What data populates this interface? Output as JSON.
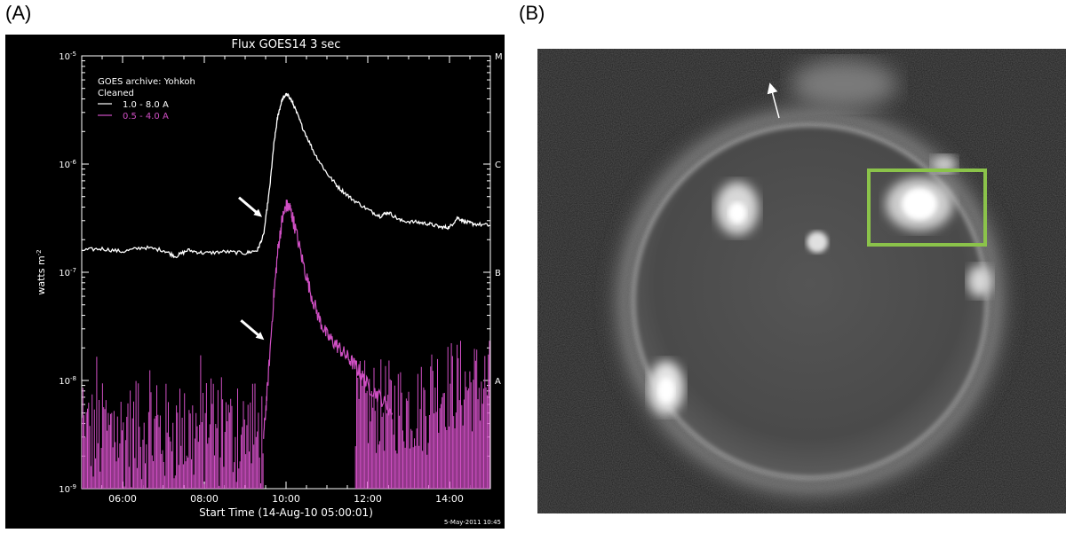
{
  "panel_labels": {
    "a": "(A)",
    "b": "(B)"
  },
  "chart_data": {
    "type": "line",
    "title": "Flux  GOES14 3 sec",
    "xlabel": "Start Time (14-Aug-10 05:00:01)",
    "ylabel": "watts m",
    "ylabel_sup": "-2",
    "yscale": "log",
    "xlim": [
      5.0,
      15.0
    ],
    "ylim": [
      1e-09,
      1e-05
    ],
    "x_ticks": [
      "06:00",
      "08:00",
      "10:00",
      "12:00",
      "14:00"
    ],
    "x_tick_values": [
      6,
      8,
      10,
      12,
      14
    ],
    "y_ticks": [
      {
        "value": 1e-05,
        "base": "10",
        "exp": "-5"
      },
      {
        "value": 1e-06,
        "base": "10",
        "exp": "-6"
      },
      {
        "value": 1e-07,
        "base": "10",
        "exp": "-7"
      },
      {
        "value": 1e-08,
        "base": "10",
        "exp": "-8"
      },
      {
        "value": 1e-09,
        "base": "10",
        "exp": "-9"
      }
    ],
    "right_axis_classes": [
      {
        "label": "M",
        "value": 1e-05
      },
      {
        "label": "C",
        "value": 1e-06
      },
      {
        "label": "B",
        "value": 1e-07
      },
      {
        "label": "A",
        "value": 1e-08
      }
    ],
    "legend": {
      "position": "top-left",
      "header": [
        "GOES archive: Yohkoh",
        "Cleaned"
      ],
      "entries": [
        {
          "label": "1.0 - 8.0 A",
          "color": "#ffffff"
        },
        {
          "label": "0.5 - 4.0 A",
          "color": "#d04fc4"
        }
      ]
    },
    "series": [
      {
        "color": "#ffffff",
        "x": [
          5.0,
          5.5,
          6.0,
          6.5,
          7.0,
          7.3,
          7.6,
          8.0,
          8.5,
          9.0,
          9.3,
          9.45,
          9.6,
          9.7,
          9.8,
          9.9,
          10.0,
          10.1,
          10.2,
          10.4,
          10.7,
          11.0,
          11.3,
          11.6,
          12.0,
          12.3,
          12.5,
          12.8,
          13.2,
          13.5,
          13.8,
          14.0,
          14.2,
          14.4,
          14.6,
          15.0
        ],
        "y": [
          1.6e-07,
          1.65e-07,
          1.55e-07,
          1.7e-07,
          1.6e-07,
          1.4e-07,
          1.6e-07,
          1.5e-07,
          1.55e-07,
          1.5e-07,
          1.6e-07,
          2.2e-07,
          6e-07,
          1.5e-06,
          2.8e-06,
          3.9e-06,
          4.4e-06,
          4.1e-06,
          3.4e-06,
          2.2e-06,
          1.25e-06,
          8.2e-07,
          6e-07,
          4.8e-07,
          3.8e-07,
          3.3e-07,
          3.6e-07,
          3e-07,
          2.9e-07,
          2.8e-07,
          2.6e-07,
          2.6e-07,
          3.2e-07,
          2.9e-07,
          2.8e-07,
          2.7e-07
        ]
      },
      {
        "color": "#d04fc4",
        "x": [
          9.45,
          9.55,
          9.7,
          9.8,
          9.9,
          10.0,
          10.1,
          10.2,
          10.4,
          10.6,
          10.8,
          11.0,
          11.2,
          11.4,
          11.6,
          11.8,
          12.0,
          12.3,
          12.6
        ],
        "y": [
          3e-09,
          9e-09,
          6e-08,
          1.6e-07,
          3e-07,
          4.1e-07,
          3.9e-07,
          2.8e-07,
          1.3e-07,
          6.5e-08,
          3.8e-08,
          2.6e-08,
          2.2e-08,
          1.8e-08,
          1.5e-08,
          1.2e-08,
          9e-09,
          7e-09,
          5e-09
        ]
      }
    ],
    "annotations": [
      {
        "type": "arrow",
        "target_x": 9.5,
        "target_y": 3e-07
      },
      {
        "type": "arrow",
        "target_x": 9.55,
        "target_y": 2.2e-08
      }
    ],
    "footer_stamp": "5-May-2011 10:45"
  },
  "image_b": {
    "box_color": "#8bc34a"
  }
}
